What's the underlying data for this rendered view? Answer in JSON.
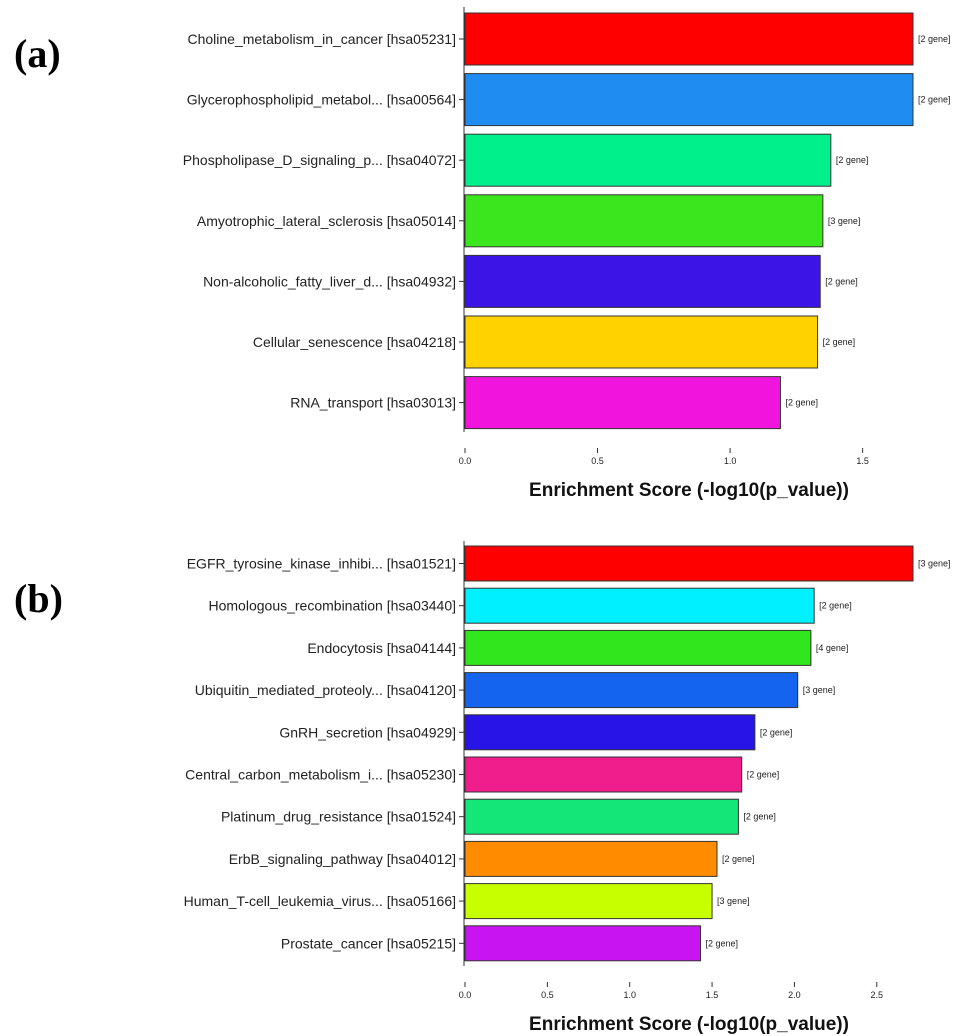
{
  "chart_data": [
    {
      "type": "bar",
      "orientation": "horizontal",
      "panel_label": "(a)",
      "xlabel": "Enrichment Score (-log10(p_value))",
      "ticks": [
        "0.0",
        "0.5",
        "1.0",
        "1.5"
      ],
      "xlim": [
        0,
        1.69
      ],
      "categories": [
        "Choline_metabolism_in_cancer [hsa05231]",
        "Glycerophospholipid_metabol... [hsa00564]",
        "Phospholipase_D_signaling_p... [hsa04072]",
        "Amyotrophic_lateral_sclerosis [hsa05014]",
        "Non-alcoholic_fatty_liver_d... [hsa04932]",
        "Cellular_senescence [hsa04218]",
        "RNA_transport [hsa03013]"
      ],
      "values": [
        1.69,
        1.69,
        1.38,
        1.35,
        1.34,
        1.33,
        1.19
      ],
      "gene_labels": [
        "[2 gene]",
        "[2 gene]",
        "[2 gene]",
        "[3 gene]",
        "[2 gene]",
        "[2 gene]",
        "[2 gene]"
      ],
      "colors": [
        "#ff0000",
        "#1e8cf0",
        "#00f08c",
        "#3ce61e",
        "#3c14e6",
        "#ffd200",
        "#f014dc"
      ]
    },
    {
      "type": "bar",
      "orientation": "horizontal",
      "panel_label": "(b)",
      "xlabel": "Enrichment Score (-log10(p_value))",
      "ticks": [
        "0.0",
        "0.5",
        "1.0",
        "1.5",
        "2.0",
        "2.5"
      ],
      "xlim": [
        0,
        2.72
      ],
      "categories": [
        "EGFR_tyrosine_kinase_inhibi... [hsa01521]",
        "Homologous_recombination [hsa03440]",
        "Endocytosis [hsa04144]",
        "Ubiquitin_mediated_proteoly... [hsa04120]",
        "GnRH_secretion [hsa04929]",
        "Central_carbon_metabolism_i... [hsa05230]",
        "Platinum_drug_resistance [hsa01524]",
        "ErbB_signaling_pathway [hsa04012]",
        "Human_T-cell_leukemia_virus... [hsa05166]",
        "Prostate_cancer [hsa05215]"
      ],
      "values": [
        2.72,
        2.12,
        2.1,
        2.02,
        1.76,
        1.68,
        1.66,
        1.53,
        1.5,
        1.43
      ],
      "gene_labels": [
        "[3 gene]",
        "[2 gene]",
        "[4 gene]",
        "[3 gene]",
        "[2 gene]",
        "[2 gene]",
        "[2 gene]",
        "[2 gene]",
        "[3 gene]",
        "[2 gene]"
      ],
      "colors": [
        "#ff0000",
        "#00f0ff",
        "#32e61e",
        "#1464f0",
        "#2814e6",
        "#f01e8c",
        "#14e678",
        "#ff8c00",
        "#c8ff00",
        "#c814f0"
      ]
    }
  ]
}
